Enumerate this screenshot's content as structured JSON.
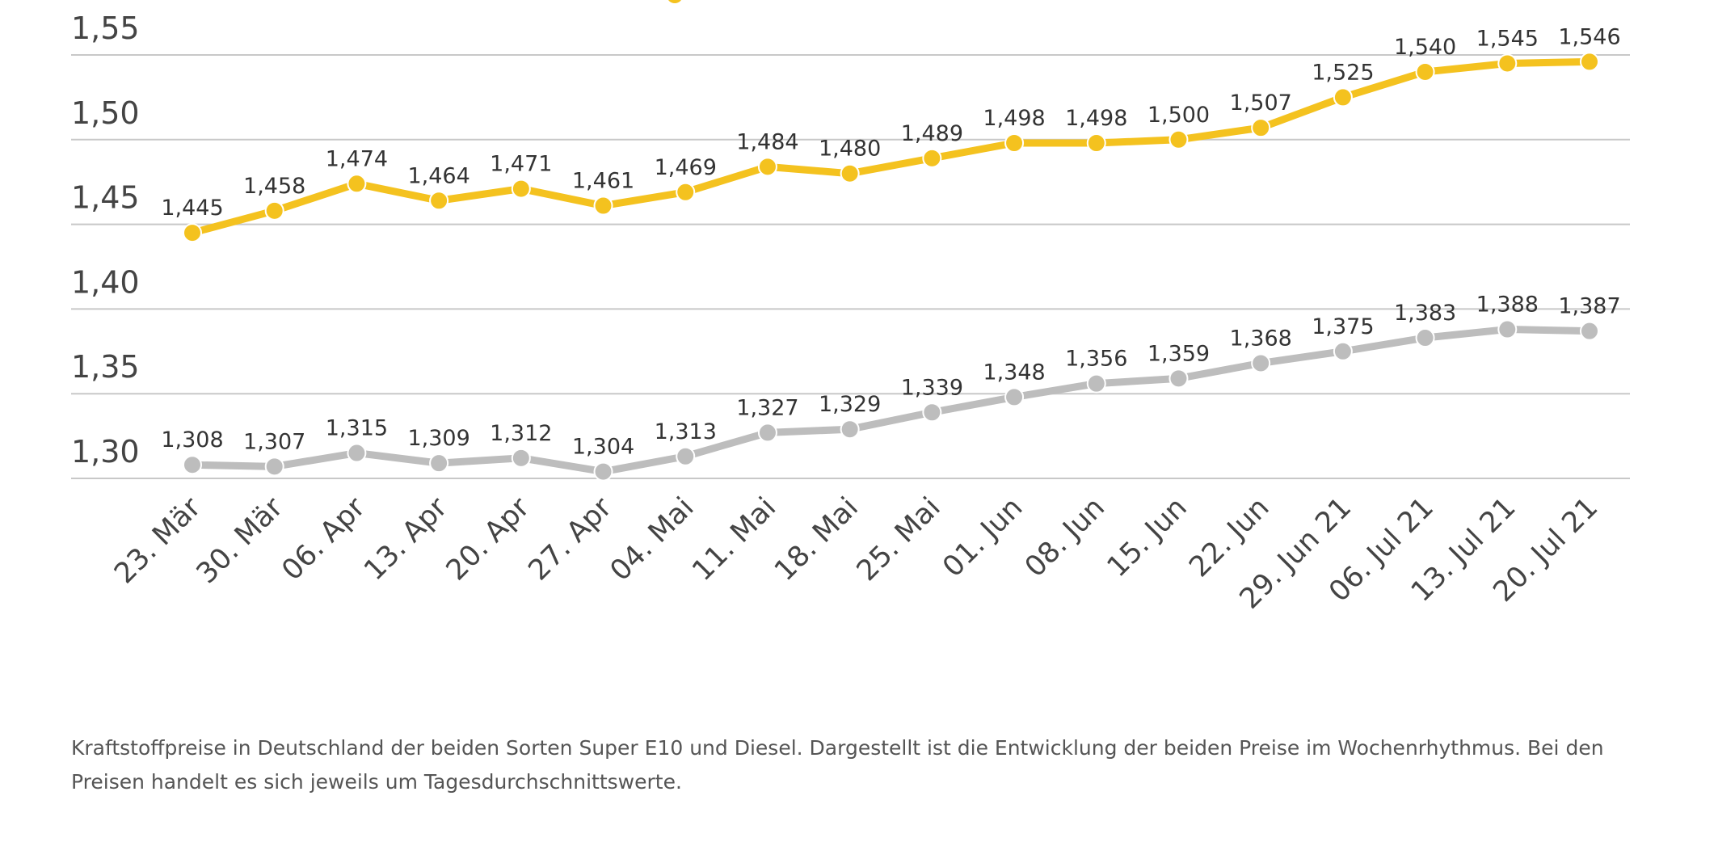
{
  "chart_data": {
    "type": "line",
    "categories": [
      "23. Mär",
      "30. Mär",
      "06. Apr",
      "13. Apr",
      "20. Apr",
      "27. Apr",
      "04. Mai",
      "11. Mai",
      "18. Mai",
      "25. Mai",
      "01. Jun",
      "08. Jun",
      "15. Jun",
      "22. Jun",
      "29. Jun 21",
      "06. Jul 21",
      "13. Jul 21",
      "20. Jul 21"
    ],
    "series": [
      {
        "color": "#F4C21F",
        "values": [
          1.445,
          1.458,
          1.474,
          1.464,
          1.471,
          1.461,
          1.469,
          1.484,
          1.48,
          1.489,
          1.498,
          1.498,
          1.5,
          1.507,
          1.525,
          1.54,
          1.545,
          1.546
        ],
        "labels": [
          "1,445",
          "1,458",
          "1,474",
          "1,464",
          "1,471",
          "1,461",
          "1,469",
          "1,484",
          "1,480",
          "1,489",
          "1,498",
          "1,498",
          "1,500",
          "1,507",
          "1,525",
          "1,540",
          "1,545",
          "1,546"
        ]
      },
      {
        "color": "#BDBDBD",
        "values": [
          1.308,
          1.307,
          1.315,
          1.309,
          1.312,
          1.304,
          1.313,
          1.327,
          1.329,
          1.339,
          1.348,
          1.356,
          1.359,
          1.368,
          1.375,
          1.383,
          1.388,
          1.387
        ],
        "labels": [
          "1,308",
          "1,307",
          "1,315",
          "1,309",
          "1,312",
          "1,304",
          "1,313",
          "1,327",
          "1,329",
          "1,339",
          "1,348",
          "1,356",
          "1,359",
          "1,368",
          "1,375",
          "1,383",
          "1,388",
          "1,387"
        ]
      }
    ],
    "yticks": [
      1.3,
      1.35,
      1.4,
      1.45,
      1.5,
      1.55
    ],
    "ytick_labels": [
      "1,30",
      "1,35",
      "1,40",
      "1,45",
      "1,50",
      "1,55"
    ],
    "ylim": [
      1.3,
      1.55
    ],
    "grid": true,
    "xlabel": "",
    "ylabel": ""
  },
  "caption": "Kraftstoffpreise in Deutschland der beiden Sorten Super E10 und Diesel. Dargestellt ist die Entwicklung der beiden Preise im Wochenrhythmus. Bei den Preisen handelt es sich jeweils um Tagesdurchschnittswerte."
}
